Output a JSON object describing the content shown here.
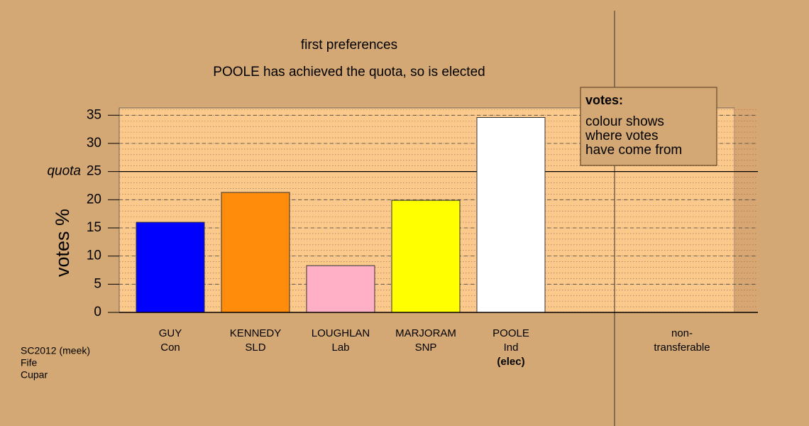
{
  "chart_data": {
    "type": "bar",
    "title": "first preferences",
    "subtitle": "POOLE has achieved the quota, so is elected",
    "y_label": "votes %",
    "categories": [
      "GUY",
      "KENNEDY",
      "LOUGHLAN",
      "MARJORAM",
      "POOLE"
    ],
    "parties": [
      "Con",
      "SLD",
      "Lab",
      "SNP",
      "Ind"
    ],
    "notes": [
      null,
      null,
      null,
      null,
      "(elec)"
    ],
    "values": [
      16.0,
      21.3,
      8.3,
      19.9,
      34.6
    ],
    "colors": [
      "#0000ff",
      "#ff8c0a",
      "#ffb0c6",
      "#ffff00",
      "#ffffff"
    ],
    "non_transferable_label": [
      "non-",
      "transferable"
    ],
    "ylim": [
      0,
      36.3
    ],
    "yticks": [
      0,
      5,
      10,
      15,
      20,
      25,
      30,
      35
    ],
    "minor_grid_step": 1,
    "quota": {
      "value": 25,
      "label": "quota"
    },
    "legend": {
      "title": "votes:",
      "lines": [
        "colour shows",
        "where votes",
        "have come from"
      ]
    },
    "footer": [
      "SC2012 (meek)",
      "Fife",
      "Cupar"
    ]
  }
}
